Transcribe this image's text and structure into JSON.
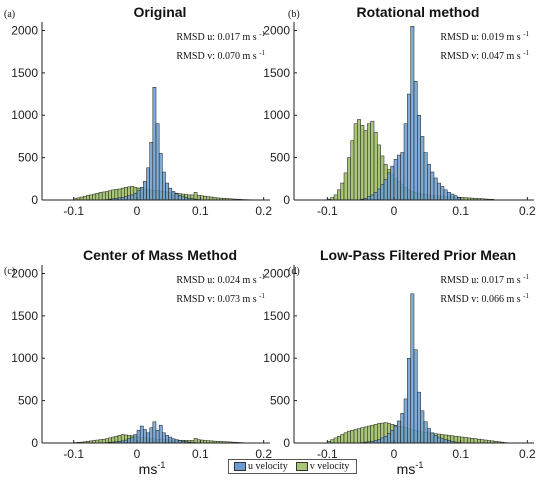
{
  "chart_data": [
    {
      "type": "bar",
      "panel_letter": "(a)",
      "title": "Original",
      "xlabel": "",
      "xlabel_unit": "",
      "xlim": [
        -0.15,
        0.21
      ],
      "ylim": [
        0,
        2100
      ],
      "xticks": [
        -0.1,
        0,
        0.1,
        0.2
      ],
      "xtick_labels": [
        "-0.1",
        "0",
        "0.1",
        "0.2"
      ],
      "yticks": [
        0,
        500,
        1000,
        1500,
        2000
      ],
      "ytick_labels": [
        "0",
        "500",
        "1000",
        "1500",
        "2000"
      ],
      "annotations": [
        "RMSD u: 0.017 m s",
        "RMSD v: 0.070 m s"
      ],
      "annotation_sup": "-1",
      "bin_width": 0.005,
      "series": [
        {
          "name": "u velocity",
          "bin_start": -0.05,
          "values": [
            5,
            10,
            15,
            20,
            25,
            30,
            40,
            50,
            60,
            80,
            110,
            150,
            220,
            380,
            680,
            1330,
            900,
            550,
            330,
            200,
            140,
            100,
            75,
            55,
            40,
            30,
            22,
            15,
            10,
            5
          ]
        },
        {
          "name": "v velocity",
          "bin_start": -0.1,
          "values": [
            15,
            25,
            35,
            45,
            55,
            60,
            70,
            80,
            90,
            95,
            100,
            110,
            120,
            125,
            130,
            140,
            150,
            155,
            160,
            150,
            140,
            135,
            130,
            125,
            120,
            115,
            110,
            105,
            100,
            95,
            90,
            85,
            80,
            75,
            70,
            65,
            60,
            60,
            90,
            55,
            50,
            45,
            40,
            35,
            30,
            25,
            22,
            20,
            18,
            15,
            12,
            10,
            8,
            6,
            5,
            4,
            3,
            2,
            1,
            1
          ]
        }
      ]
    },
    {
      "type": "bar",
      "panel_letter": "(b)",
      "title": "Rotational method",
      "xlabel": "",
      "xlabel_unit": "",
      "xlim": [
        -0.15,
        0.21
      ],
      "ylim": [
        0,
        2100
      ],
      "xticks": [
        -0.1,
        0,
        0.1,
        0.2
      ],
      "xtick_labels": [
        "-0.1",
        "0",
        "0.1",
        "0.2"
      ],
      "yticks": [
        0,
        500,
        1000,
        1500,
        2000
      ],
      "ytick_labels": [
        "0",
        "500",
        "1000",
        "1500",
        "2000"
      ],
      "annotations": [
        "RMSD u: 0.019 m s",
        "RMSD v: 0.047 m s"
      ],
      "annotation_sup": "-1",
      "bin_width": 0.005,
      "series": [
        {
          "name": "u velocity",
          "bin_start": -0.05,
          "values": [
            10,
            20,
            40,
            60,
            90,
            130,
            180,
            240,
            320,
            400,
            480,
            530,
            560,
            900,
            1250,
            2050,
            1400,
            1000,
            750,
            560,
            420,
            330,
            260,
            200,
            160,
            120,
            90,
            70,
            50,
            30
          ]
        },
        {
          "name": "v velocity",
          "bin_start": -0.1,
          "values": [
            10,
            30,
            60,
            120,
            200,
            320,
            500,
            700,
            900,
            950,
            880,
            820,
            900,
            930,
            800,
            650,
            520,
            420,
            360,
            300,
            250,
            220,
            180,
            150,
            120,
            100,
            90,
            80,
            70,
            65,
            60,
            55,
            50,
            48,
            45,
            42,
            40,
            38,
            35,
            32,
            30,
            28,
            25,
            22,
            20,
            18,
            15,
            12,
            10,
            8
          ]
        }
      ]
    },
    {
      "type": "bar",
      "panel_letter": "(c)",
      "title": "Center of Mass Method",
      "xlabel": "ms",
      "xlabel_unit": "-1",
      "xlim": [
        -0.15,
        0.21
      ],
      "ylim": [
        0,
        2100
      ],
      "xticks": [
        -0.1,
        0,
        0.1,
        0.2
      ],
      "xtick_labels": [
        "-0.1",
        "0",
        "0.1",
        "0.2"
      ],
      "yticks": [
        0,
        500,
        1000,
        1500,
        2000
      ],
      "ytick_labels": [
        "0",
        "500",
        "1000",
        "1500",
        "2000"
      ],
      "annotations": [
        "RMSD u: 0.024 m s",
        "RMSD v: 0.073 m s"
      ],
      "annotation_sup": "-1",
      "bin_width": 0.005,
      "series": [
        {
          "name": "u velocity",
          "bin_start": -0.05,
          "values": [
            5,
            8,
            12,
            15,
            20,
            25,
            35,
            50,
            70,
            100,
            150,
            200,
            160,
            120,
            180,
            250,
            150,
            210,
            120,
            90,
            70,
            50,
            40,
            30,
            22,
            15,
            10,
            6,
            4,
            2
          ]
        },
        {
          "name": "v velocity",
          "bin_start": -0.1,
          "values": [
            5,
            8,
            10,
            15,
            20,
            25,
            30,
            35,
            40,
            45,
            50,
            60,
            70,
            80,
            90,
            100,
            95,
            90,
            85,
            80,
            75,
            70,
            65,
            60,
            55,
            50,
            45,
            42,
            40,
            38,
            36,
            35,
            34,
            33,
            32,
            31,
            30,
            30,
            55,
            40,
            35,
            30,
            28,
            25,
            22,
            20,
            18,
            16,
            14,
            12,
            10,
            8,
            6,
            4,
            2
          ]
        }
      ]
    },
    {
      "type": "bar",
      "panel_letter": "(d)",
      "title": "Low-Pass Filtered Prior Mean",
      "xlabel": "ms",
      "xlabel_unit": "-1",
      "xlim": [
        -0.15,
        0.21
      ],
      "ylim": [
        0,
        2100
      ],
      "xticks": [
        -0.1,
        0,
        0.1,
        0.2
      ],
      "xtick_labels": [
        "-0.1",
        "0",
        "0.1",
        "0.2"
      ],
      "yticks": [
        0,
        500,
        1000,
        1500,
        2000
      ],
      "ytick_labels": [
        "0",
        "500",
        "1000",
        "1500",
        "2000"
      ],
      "annotations": [
        "RMSD u: 0.017 m s",
        "RMSD v: 0.066 m s"
      ],
      "annotation_sup": "-1",
      "bin_width": 0.005,
      "series": [
        {
          "name": "u velocity",
          "bin_start": -0.05,
          "values": [
            5,
            10,
            15,
            20,
            30,
            40,
            60,
            80,
            110,
            150,
            200,
            260,
            350,
            520,
            1000,
            1760,
            1100,
            600,
            380,
            250,
            170,
            120,
            90,
            70,
            50,
            40,
            30,
            20,
            12,
            6
          ]
        },
        {
          "name": "v velocity",
          "bin_start": -0.1,
          "values": [
            20,
            40,
            60,
            80,
            100,
            120,
            140,
            150,
            160,
            170,
            180,
            190,
            200,
            210,
            220,
            230,
            235,
            240,
            230,
            220,
            210,
            200,
            190,
            180,
            170,
            160,
            150,
            140,
            130,
            125,
            120,
            115,
            110,
            105,
            100,
            95,
            90,
            85,
            80,
            75,
            70,
            65,
            60,
            55,
            50,
            45,
            40,
            35,
            30,
            25,
            20,
            15,
            10,
            5,
            3,
            2
          ]
        }
      ]
    }
  ],
  "legend": {
    "items": [
      {
        "label": "u velocity",
        "color": "#6a9ccf"
      },
      {
        "label": "v velocity",
        "color": "#a9c57a"
      }
    ]
  },
  "colors": {
    "u_fill": "#6a9ccf",
    "v_fill": "#a9c57a",
    "overlap_fill": "#6e9c6e",
    "edge": "#1a1a1a",
    "axis": "#222222"
  }
}
